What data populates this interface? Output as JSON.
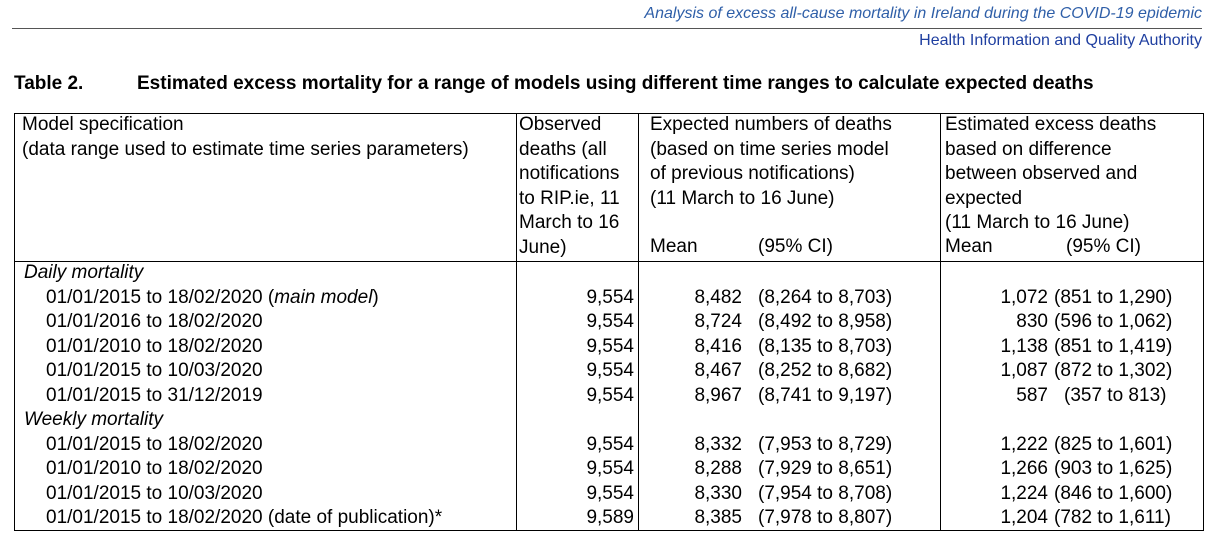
{
  "header": {
    "running_title": "Analysis of excess all-cause mortality in Ireland during the COVID-19 epidemic",
    "organisation": "Health Information and Quality Authority"
  },
  "table": {
    "number": "Table 2.",
    "title": "Estimated excess mortality for a range of models using different time ranges to calculate expected deaths",
    "col1_header": [
      "Model specification",
      "(data range used to estimate time series parameters)"
    ],
    "col2_header": [
      "Observed",
      "deaths (all",
      "notifications",
      "to RIP.ie, 11",
      "March to 16",
      "June)"
    ],
    "col3_header": [
      "Expected numbers of deaths",
      "(based on time series model",
      "of previous notifications)",
      "(11 March to 16 June)"
    ],
    "col3_sub": {
      "mean": "Mean",
      "ci": "(95% CI)"
    },
    "col4_header": [
      "Estimated excess deaths",
      "based on difference",
      "between observed and",
      "expected",
      "(11 March to 16 June)"
    ],
    "col4_sub": {
      "mean": "Mean",
      "ci": "(95% CI)"
    },
    "sections": [
      {
        "label": "Daily mortality",
        "rows": [
          {
            "model": "01/01/2015 to 18/02/2020 (",
            "model_italic": "main model",
            "model_end": ")",
            "observed": "9,554",
            "exp_mean": "8,482",
            "exp_ci": "(8,264 to 8,703)",
            "exc_mean": "1,072",
            "exc_ci": "(851 to 1,290)"
          },
          {
            "model": "01/01/2016 to 18/02/2020",
            "observed": "9,554",
            "exp_mean": "8,724",
            "exp_ci": "(8,492 to 8,958)",
            "exc_mean": "830",
            "exc_ci": "(596 to 1,062)"
          },
          {
            "model": "01/01/2010 to 18/02/2020",
            "observed": "9,554",
            "exp_mean": "8,416",
            "exp_ci": "(8,135 to 8,703)",
            "exc_mean": "1,138",
            "exc_ci": "(851 to 1,419)"
          },
          {
            "model": "01/01/2015 to 10/03/2020",
            "observed": "9,554",
            "exp_mean": "8,467",
            "exp_ci": "(8,252 to 8,682)",
            "exc_mean": "1,087",
            "exc_ci": "(872 to 1,302)"
          },
          {
            "model": "01/01/2015 to 31/12/2019",
            "observed": "9,554",
            "exp_mean": "8,967",
            "exp_ci": "(8,741 to 9,197)",
            "exc_mean": "587",
            "exc_ci": "(357 to 813)"
          }
        ]
      },
      {
        "label": "Weekly mortality",
        "rows": [
          {
            "model": "01/01/2015 to 18/02/2020",
            "observed": "9,554",
            "exp_mean": "8,332",
            "exp_ci": "(7,953 to 8,729)",
            "exc_mean": "1,222",
            "exc_ci": "(825 to 1,601)"
          },
          {
            "model": "01/01/2010 to 18/02/2020",
            "observed": "9,554",
            "exp_mean": "8,288",
            "exp_ci": "(7,929 to 8,651)",
            "exc_mean": "1,266",
            "exc_ci": "(903 to 1,625)"
          },
          {
            "model": "01/01/2015 to 10/03/2020",
            "observed": "9,554",
            "exp_mean": "8,330",
            "exp_ci": "(7,954 to 8,708)",
            "exc_mean": "1,224",
            "exc_ci": "(846 to 1,600)"
          },
          {
            "model": "01/01/2015 to 18/02/2020 (date of publication)*",
            "observed": "9,589",
            "exp_mean": "8,385",
            "exp_ci": "(7,978 to 8,807)",
            "exc_mean": "1,204",
            "exc_ci": "(782 to 1,611)"
          }
        ]
      }
    ]
  }
}
